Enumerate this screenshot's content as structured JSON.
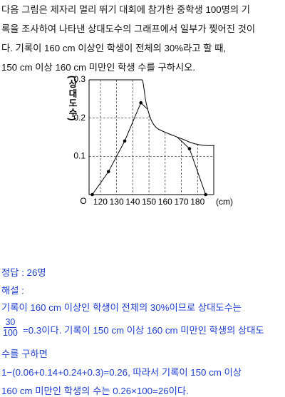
{
  "problem": {
    "lines": [
      "다음 그림은 제자리 멀리 뛰기 대회에 참가한 중학생 100명의 기",
      "록을 조사하여 나타낸 상대도수의 그래프에서 일부가 찢어진 것이",
      "다. 기록이 160 cm 이상인 학생이 전체의 30%라고 할 때,",
      "150 cm 이상 160 cm 미만인 학생 수를 구하시오."
    ]
  },
  "chart_data": {
    "type": "line",
    "ylabel": "(상대도수)",
    "xlabel": "(cm)",
    "origin_label": "O",
    "x": [
      115,
      125,
      135,
      145,
      175,
      185
    ],
    "values": [
      0,
      0.06,
      0.14,
      0.24,
      0.12,
      0
    ],
    "xlim": [
      113,
      190
    ],
    "ylim": [
      0,
      0.3
    ],
    "xticks": [
      120,
      130,
      140,
      150,
      160,
      170,
      180
    ],
    "yticks": [
      0.1,
      0.2,
      0.3
    ],
    "grid": true,
    "color": "#000000"
  },
  "answer": "정답 : 26명",
  "explanation": {
    "heading": "해설 :",
    "line1": "기록이 160 cm 이상인 학생이 전체의 30%이므로 상대도수는",
    "fraction": {
      "numerator": "30",
      "denominator": "100"
    },
    "line2": "=0.3이다. 기록이 150 cm 이상 160 cm 미만인 학생의 상대도",
    "line3": "수를 구하면",
    "line4": "1−(0.06+0.14+0.24+0.3)=0.26, 따라서 기록이 150 cm 이상",
    "line5": "160 cm 미만인 학생의 수는 0.26×100=26이다."
  }
}
